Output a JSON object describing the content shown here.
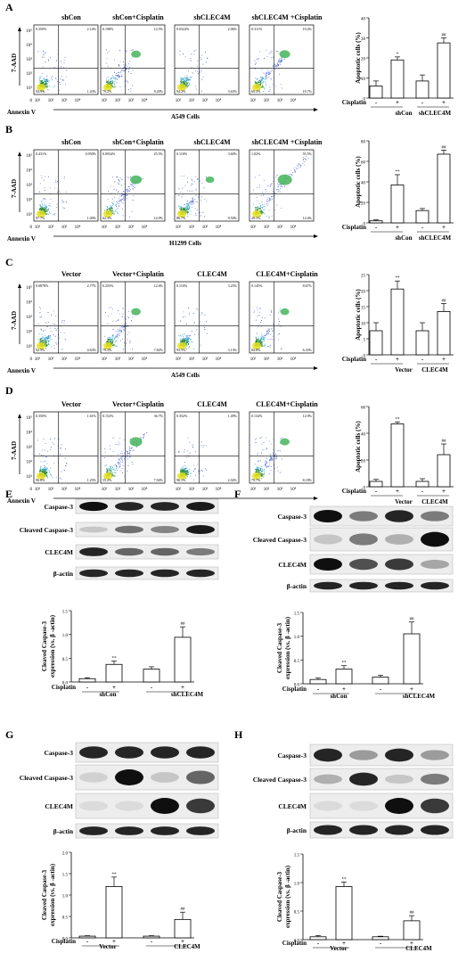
{
  "figure": {
    "panel_labels": [
      "A",
      "B",
      "C",
      "D",
      "E",
      "F",
      "G",
      "H"
    ],
    "flow_axis": {
      "y": "7-AAD",
      "x": "Annexin V"
    },
    "flow_ticks": [
      "0",
      "10¹",
      "10²",
      "10³",
      "10⁴",
      "10⁵"
    ],
    "treatment_label": "Cisplatin",
    "bar_ylabel": "Apoptotic cells (%)",
    "wb_ylabel_line1": "Cleaved Caspase-3",
    "wb_ylabel_line2": "expression (vs. β -actin)",
    "signs": [
      "-",
      "+",
      "-",
      "+"
    ]
  },
  "panels": {
    "A": {
      "cell_label": "A549 Cells",
      "plots": [
        {
          "title": "shCon",
          "quads": [
            "0.350%",
            "2.14%",
            "94.9%",
            "1.43%"
          ]
        },
        {
          "title": "shCon+Cisplatin",
          "quads": [
            "0.198%",
            "12.5%",
            "79.2%",
            "8.20%"
          ]
        },
        {
          "title": "shCLEC4M",
          "quads": [
            "0.0324%",
            "2.06%",
            "94.2%",
            "3.63%"
          ]
        },
        {
          "title": "shCLEC4M +Cisplatin",
          "quads": [
            "0.311%",
            "19.4%",
            "69.3%",
            "10.7%"
          ]
        }
      ],
      "groups": [
        "shCon",
        "shCLEC4M"
      ]
    },
    "B": {
      "cell_label": "H1299 Cells",
      "plots": [
        {
          "title": "shCon",
          "quads": [
            "0.431%",
            "0.950%",
            "97.7%",
            "1.00%"
          ]
        },
        {
          "title": "shCon+Cisplatin",
          "quads": [
            "0.0934%",
            "25.5%",
            "62.3%",
            "12.0%"
          ]
        },
        {
          "title": "shCLEC4M",
          "quads": [
            "0.110%",
            "3.60%",
            "86.7%",
            "9.50%"
          ]
        },
        {
          "title": "shCLEC4M +Cisplatin",
          "quads": [
            "1.02%",
            "55.5%",
            "29.1%",
            "14.4%"
          ]
        }
      ],
      "groups": [
        "shCon",
        "shCLEC4M"
      ]
    },
    "C": {
      "cell_label": "A549 Cells",
      "plots": [
        {
          "title": "Vector",
          "quads": [
            "0.0878%",
            "2.77%",
            "92.5%",
            "4.63%"
          ]
        },
        {
          "title": "Vector+Cisplatin",
          "quads": [
            "0.255%",
            "12.6%",
            "79.3%",
            "7.82%"
          ]
        },
        {
          "title": "CLEC4M",
          "quads": [
            "0.110%",
            "3.25%",
            "93.5%",
            "3.13%"
          ]
        },
        {
          "title": "CLEC4M+Cisplatin",
          "quads": [
            "0.145%",
            "8.67%",
            "84.8%",
            "6.33%"
          ]
        }
      ],
      "groups": [
        "Vector",
        "CLEC4M"
      ]
    },
    "D": {
      "cell_label": "H1299 Cells",
      "plots": [
        {
          "title": "Vector",
          "quads": [
            "0.350%",
            "1.61%",
            "96.8%",
            "1.25%"
          ]
        },
        {
          "title": "Vector+Cisplatin",
          "quads": [
            "0.152%",
            "36.7%",
            "55.2%",
            "7.94%"
          ]
        },
        {
          "title": "CLEC4M",
          "quads": [
            "0.352%",
            "1.49%",
            "96.1%",
            "2.02%"
          ]
        },
        {
          "title": "CLEC4M+Cisplatin",
          "quads": [
            "0.134%",
            "12.0%",
            "79.7%",
            "8.18%"
          ]
        }
      ],
      "groups": [
        "Vector",
        "CLEC4M"
      ]
    },
    "E": {
      "bands": [
        "Caspase-3",
        "Cleaved Caspase-3",
        "CLEC4M",
        "β-actin"
      ],
      "groups": [
        "shCon",
        "shCLEC4M"
      ]
    },
    "F": {
      "bands": [
        "Caspase-3",
        "Cleaved Caspase-3",
        "CLEC4M",
        "β-actin"
      ],
      "groups": [
        "shCon",
        "shCLEC4M"
      ]
    },
    "G": {
      "bands": [
        "Caspase-3",
        "Cleaved Caspase-3",
        "CLEC4M",
        "β-actin"
      ],
      "groups": [
        "Vector",
        "CLEC4M"
      ]
    },
    "H": {
      "bands": [
        "Caspase-3",
        "Cleaved Caspase-3",
        "CLEC4M",
        "β-actin"
      ],
      "groups": [
        "Vector",
        "CLEC4M"
      ]
    }
  },
  "chart_data": [
    {
      "panel": "A",
      "type": "bar",
      "ylabel": "Apoptotic cells (%)",
      "categories": [
        "-",
        "+",
        "-",
        "+"
      ],
      "groups": [
        "shCon",
        "shCLEC4M"
      ],
      "values": [
        6,
        19,
        8.5,
        27.5
      ],
      "errors": [
        2.5,
        1.5,
        3,
        2.5
      ],
      "sig": [
        "",
        "*",
        "",
        "##"
      ],
      "ylim": [
        0,
        40
      ],
      "yticks": [
        0,
        10,
        20,
        30,
        40
      ]
    },
    {
      "panel": "B",
      "type": "bar",
      "ylabel": "Apoptotic cells (%)",
      "categories": [
        "-",
        "+",
        "-",
        "+"
      ],
      "groups": [
        "shCon",
        "shCLEC4M"
      ],
      "values": [
        2,
        37,
        12,
        67
      ],
      "errors": [
        1,
        10,
        2,
        4
      ],
      "sig": [
        "",
        "**",
        "",
        "##"
      ],
      "ylim": [
        0,
        80
      ],
      "yticks": [
        0,
        20,
        40,
        60,
        80
      ]
    },
    {
      "panel": "C",
      "type": "bar",
      "ylabel": "Apoptotic cells (%)",
      "categories": [
        "-",
        "+",
        "-",
        "+"
      ],
      "groups": [
        "Vector",
        "CLEC4M"
      ],
      "values": [
        7.5,
        20.5,
        7.5,
        13.5
      ],
      "errors": [
        2.5,
        2.5,
        2.5,
        2.5
      ],
      "sig": [
        "",
        "**",
        "",
        "##"
      ],
      "ylim": [
        0,
        25
      ],
      "yticks": [
        0,
        5,
        10,
        15,
        20,
        25
      ]
    },
    {
      "panel": "D",
      "type": "bar",
      "ylabel": "Apoptotic cells (%)",
      "categories": [
        "-",
        "+",
        "-",
        "+"
      ],
      "groups": [
        "Vector",
        "CLEC4M"
      ],
      "values": [
        4,
        47,
        4,
        24
      ],
      "errors": [
        1.5,
        1.5,
        2,
        8
      ],
      "sig": [
        "",
        "**",
        "",
        "##"
      ],
      "ylim": [
        0,
        60
      ],
      "yticks": [
        0,
        20,
        40,
        60
      ]
    },
    {
      "panel": "E",
      "type": "bar",
      "ylabel": "Cleaved Caspase-3 expression (vs. β -actin)",
      "categories": [
        "-",
        "+",
        "-",
        "+"
      ],
      "groups": [
        "shCon",
        "shCLEC4M"
      ],
      "values": [
        0.07,
        0.37,
        0.27,
        0.94
      ],
      "errors": [
        0.02,
        0.07,
        0.05,
        0.22
      ],
      "sig": [
        "",
        "**",
        "",
        "##"
      ],
      "ylim": [
        0,
        1.5
      ],
      "yticks": [
        0.0,
        0.5,
        1.0,
        1.5
      ]
    },
    {
      "panel": "F",
      "type": "bar",
      "ylabel": "Cleaved Caspase-3 expression (vs. β -actin)",
      "categories": [
        "-",
        "+",
        "-",
        "+"
      ],
      "groups": [
        "shCon",
        "shCLEC4M"
      ],
      "values": [
        0.09,
        0.31,
        0.14,
        1.05
      ],
      "errors": [
        0.03,
        0.07,
        0.04,
        0.25
      ],
      "sig": [
        "",
        "**",
        "",
        "##"
      ],
      "ylim": [
        0,
        1.5
      ],
      "yticks": [
        0.0,
        0.5,
        1.0,
        1.5
      ]
    },
    {
      "panel": "G",
      "type": "bar",
      "ylabel": "Cleaved Caspase-3 expression (vs. β -actin)",
      "categories": [
        "-",
        "+",
        "-",
        "+"
      ],
      "groups": [
        "Vector",
        "CLEC4M"
      ],
      "values": [
        0.04,
        1.2,
        0.04,
        0.43
      ],
      "errors": [
        0.01,
        0.22,
        0.01,
        0.17
      ],
      "sig": [
        "",
        "**",
        "",
        "##"
      ],
      "ylim": [
        0,
        2.0
      ],
      "yticks": [
        0.0,
        0.5,
        1.0,
        1.5,
        2.0
      ]
    },
    {
      "panel": "H",
      "type": "bar",
      "ylabel": "Cleaved Caspase-3 expression (vs. β -actin)",
      "categories": [
        "-",
        "+",
        "-",
        "+"
      ],
      "groups": [
        "Vector",
        "CLEC4M"
      ],
      "values": [
        0.05,
        0.93,
        0.05,
        0.33
      ],
      "errors": [
        0.02,
        0.08,
        0.01,
        0.09
      ],
      "sig": [
        "",
        "**",
        "",
        "##"
      ],
      "ylim": [
        0,
        1.5
      ],
      "yticks": [
        0.0,
        0.5,
        1.0,
        1.5
      ]
    }
  ]
}
